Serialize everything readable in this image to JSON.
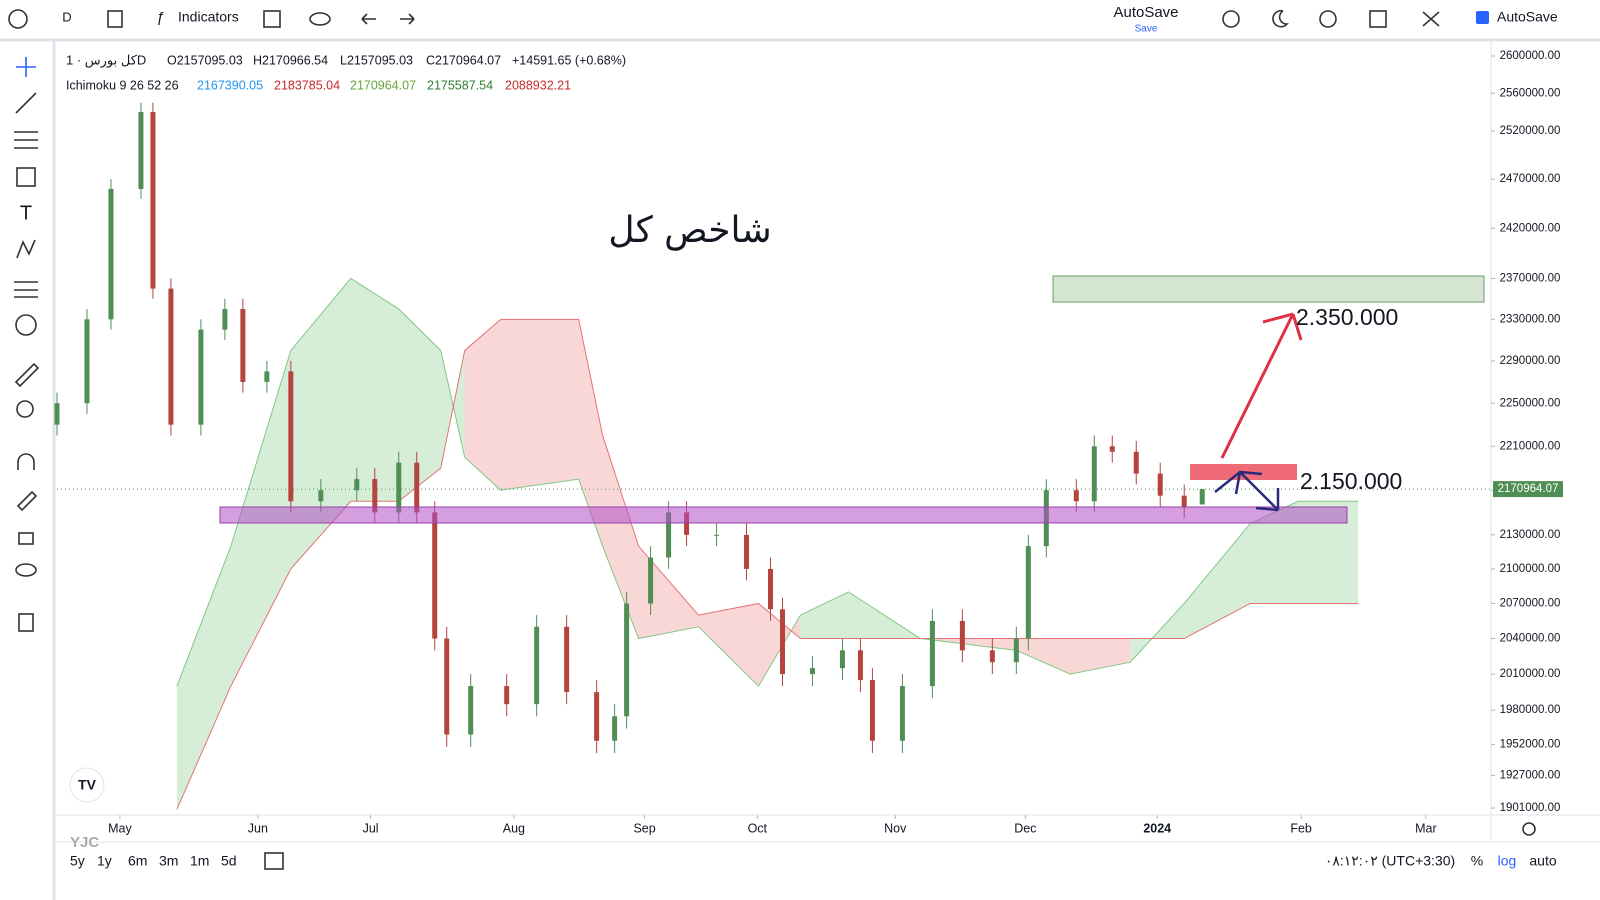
{
  "toolbar": {
    "interval": "D",
    "indicators": "Indicators",
    "autosave": "AutoSave",
    "save": "Save",
    "autosave_check": "AutoSave"
  },
  "chart_data": {
    "type": "candlestick",
    "symbol": "کل بورس · 1D",
    "ohlc_header": [
      "O2157095.03",
      "H2170966.54",
      "L2157095.03",
      "C2170964.07",
      "+14591.65 (+0.68%)"
    ],
    "indicator_header": [
      "Ichimoku 9 26 52 26",
      "2167390.05",
      "2183785.04",
      "2170964.07",
      "2175587.54",
      "2088932.21"
    ],
    "title": "شاخص کل",
    "annotations": [
      "2.350.000",
      "2.150.000"
    ],
    "log_scale": true,
    "grid": false,
    "up_color": "#4f8f55",
    "down_color": "#b5443f",
    "x": [
      0,
      5,
      9,
      14,
      16,
      19,
      24,
      28,
      31,
      35,
      39,
      44,
      50,
      53,
      57,
      60,
      63,
      65,
      69,
      75,
      80,
      85,
      90,
      93,
      95,
      99,
      102,
      105,
      110,
      115,
      119,
      121,
      126,
      131,
      134,
      136,
      141,
      146,
      151,
      156,
      160,
      162,
      165,
      170,
      173,
      176,
      180,
      184,
      188,
      191
    ],
    "open": [
      2230000,
      2250000,
      2330000,
      2460000,
      2540000,
      2360000,
      2230000,
      2320000,
      2340000,
      2270000,
      2280000,
      2160000,
      2170000,
      2180000,
      2150000,
      2195000,
      2150000,
      2040000,
      1960000,
      2000000,
      1985000,
      2050000,
      1995000,
      1955000,
      1975000,
      2070000,
      2110000,
      2150000,
      2130000,
      2130000,
      2100000,
      2065000,
      2010000,
      2015000,
      2030000,
      2005000,
      1955000,
      2000000,
      2055000,
      2030000,
      2020000,
      2040000,
      2120000,
      2170000,
      2160000,
      2210000,
      2205000,
      2185000,
      2165000,
      2157095.03
    ],
    "high": [
      2260000,
      2340000,
      2470000,
      2550000,
      2550000,
      2370000,
      2330000,
      2350000,
      2350000,
      2290000,
      2290000,
      2180000,
      2190000,
      2190000,
      2205000,
      2205000,
      2160000,
      2050000,
      2010000,
      2010000,
      2060000,
      2060000,
      2005000,
      1985000,
      2080000,
      2120000,
      2160000,
      2160000,
      2140000,
      2140000,
      2110000,
      2075000,
      2025000,
      2040000,
      2040000,
      2015000,
      2010000,
      2065000,
      2065000,
      2040000,
      2050000,
      2130000,
      2180000,
      2180000,
      2220000,
      2220000,
      2215000,
      2195000,
      2175000,
      2170966.54
    ],
    "low": [
      2220000,
      2240000,
      2320000,
      2450000,
      2350000,
      2220000,
      2220000,
      2310000,
      2260000,
      2260000,
      2150000,
      2150000,
      2160000,
      2140000,
      2140000,
      2140000,
      2030000,
      1950000,
      1950000,
      1975000,
      1975000,
      1985000,
      1945000,
      1945000,
      1965000,
      2060000,
      2100000,
      2120000,
      2120000,
      2090000,
      2055000,
      2000000,
      2000000,
      2005000,
      1995000,
      1945000,
      1945000,
      1990000,
      2020000,
      2010000,
      2010000,
      2030000,
      2110000,
      2150000,
      2150000,
      2195000,
      2175000,
      2155000,
      2145000,
      2157095.03
    ],
    "close": [
      2250000,
      2330000,
      2460000,
      2540000,
      2360000,
      2230000,
      2320000,
      2340000,
      2270000,
      2280000,
      2160000,
      2170000,
      2180000,
      2150000,
      2195000,
      2150000,
      2040000,
      1960000,
      2000000,
      1985000,
      2050000,
      1995000,
      1955000,
      1975000,
      2070000,
      2110000,
      2150000,
      2130000,
      2130000,
      2100000,
      2065000,
      2010000,
      2015000,
      2030000,
      2005000,
      1955000,
      2000000,
      2055000,
      2030000,
      2020000,
      2040000,
      2120000,
      2170000,
      2160000,
      2210000,
      2205000,
      2185000,
      2165000,
      2155000,
      2170964.07
    ],
    "ichimoku_cloud": {
      "x": [
        20,
        29,
        39,
        49,
        57,
        64,
        68,
        74,
        87,
        91,
        97,
        107,
        117,
        124,
        132,
        144,
        160,
        169,
        179,
        188,
        199,
        207,
        217
      ],
      "lead_a": [
        2000000,
        2120000,
        2300000,
        2370000,
        2340000,
        2300000,
        2200000,
        2170000,
        2180000,
        2120000,
        2040000,
        2050000,
        2000000,
        2060000,
        2080000,
        2040000,
        2030000,
        2010000,
        2020000,
        2070000,
        2140000,
        2160000,
        2160000
      ],
      "lead_b": [
        1900000,
        2000000,
        2100000,
        2160000,
        2160000,
        2190000,
        2300000,
        2330000,
        2330000,
        2220000,
        2120000,
        2060000,
        2070000,
        2040000,
        2040000,
        2040000,
        2040000,
        2040000,
        2040000,
        2040000,
        2070000,
        2070000,
        2070000
      ],
      "up_color": "#a5d6a7",
      "down_color": "#f4a6a6"
    },
    "current_price": 2170964.07,
    "xlim": [
      0,
      239
    ],
    "ylim": [
      1901000,
      2600000
    ],
    "xticks": [
      {
        "value": 10.5,
        "label": "May"
      },
      {
        "value": 33.5,
        "label": "Jun"
      },
      {
        "value": 52.3,
        "label": "Jul"
      },
      {
        "value": 76.2,
        "label": "Aug"
      },
      {
        "value": 98,
        "label": "Sep"
      },
      {
        "value": 116.8,
        "label": "Oct"
      },
      {
        "value": 139.8,
        "label": "Nov"
      },
      {
        "value": 161.5,
        "label": "Dec"
      },
      {
        "value": 183.5,
        "label": "2024"
      },
      {
        "value": 207.5,
        "label": "Feb"
      },
      {
        "value": 228.3,
        "label": "Mar"
      }
    ],
    "yticks": [
      {
        "value": 2600000,
        "label": "2600000.00"
      },
      {
        "value": 2560000,
        "label": "2560000.00"
      },
      {
        "value": 2520000,
        "label": "2520000.00"
      },
      {
        "value": 2470000,
        "label": "2470000.00"
      },
      {
        "value": 2420000,
        "label": "2420000.00"
      },
      {
        "value": 2370000,
        "label": "2370000.00"
      },
      {
        "value": 2330000,
        "label": "2330000.00"
      },
      {
        "value": 2290000,
        "label": "2290000.00"
      },
      {
        "value": 2250000,
        "label": "2250000.00"
      },
      {
        "value": 2210000,
        "label": "2210000.00"
      },
      {
        "value": 2170000,
        "label": "2170000.00"
      },
      {
        "value": 2130000,
        "label": "2130000.00"
      },
      {
        "value": 2100000,
        "label": "2100000.00"
      },
      {
        "value": 2070000,
        "label": "2070000.00"
      },
      {
        "value": 2040000,
        "label": "2040000.00"
      },
      {
        "value": 2010000,
        "label": "2010000.00"
      },
      {
        "value": 1980000,
        "label": "1980000.00"
      },
      {
        "value": 1952000,
        "label": "1952000.00"
      },
      {
        "value": 1927000,
        "label": "1927000.00"
      },
      {
        "value": 1901000,
        "label": "1901000.00"
      }
    ]
  },
  "bottom_bar": {
    "ranges": [
      "5y",
      "1y",
      "6m",
      "3m",
      "1m",
      "5d"
    ],
    "clock": "۰۸:۱۲:۰۲ (UTC+3:30)",
    "percent": "%",
    "log": "log",
    "auto": "auto",
    "watermark": "YJC"
  }
}
